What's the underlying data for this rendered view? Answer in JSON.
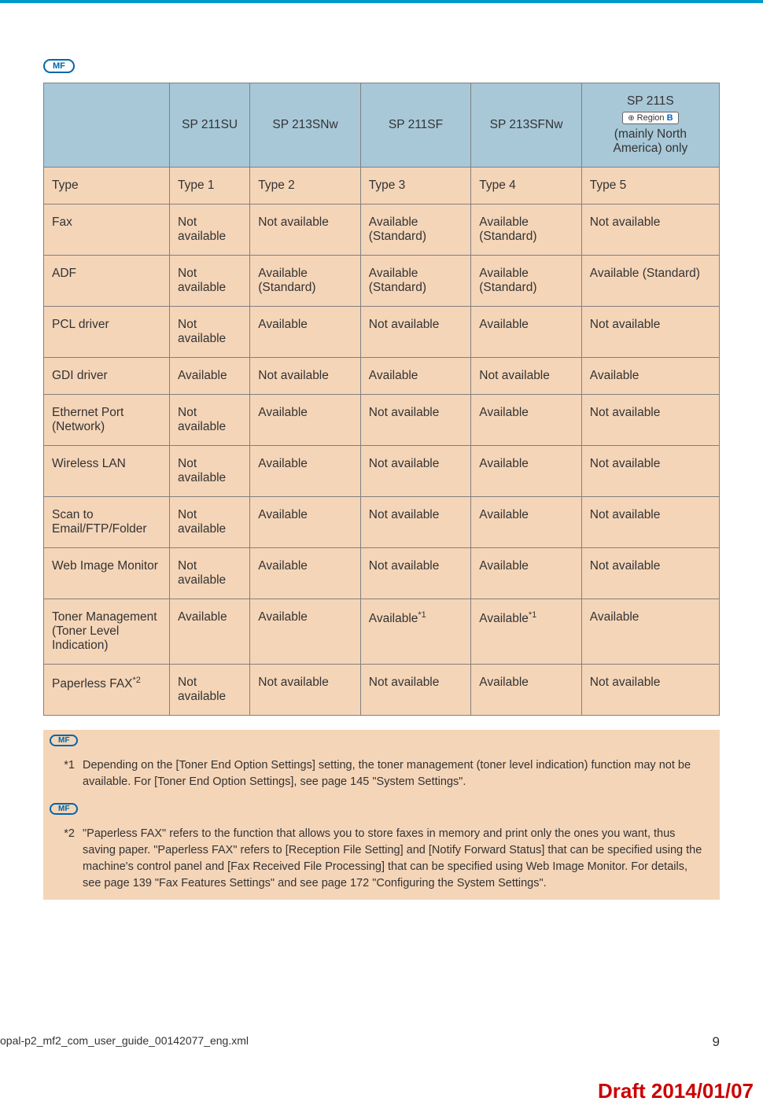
{
  "badges": {
    "mf": "MF"
  },
  "table": {
    "header_bg": "#a8c8d8",
    "body_bg": "#f5d5b8",
    "border_color": "#808080",
    "columns": [
      {
        "label": ""
      },
      {
        "label": "SP 211SU"
      },
      {
        "label": "SP 213SNw"
      },
      {
        "label": "SP 211SF"
      },
      {
        "label": "SP 213SFNw"
      },
      {
        "label": "SP 211S",
        "sub_region": "Region",
        "sub_region_letter": "B",
        "sub_text": "(mainly North America) only"
      }
    ],
    "rows": [
      {
        "feature": "Type",
        "cells": [
          "Type 1",
          "Type 2",
          "Type 3",
          "Type 4",
          "Type 5"
        ]
      },
      {
        "feature": "Fax",
        "cells": [
          "Not available",
          "Not available",
          "Available (Standard)",
          "Available (Standard)",
          "Not available"
        ]
      },
      {
        "feature": "ADF",
        "cells": [
          "Not available",
          "Available (Standard)",
          "Available (Standard)",
          "Available (Standard)",
          "Available (Standard)"
        ]
      },
      {
        "feature": "PCL driver",
        "cells": [
          "Not available",
          "Available",
          "Not available",
          "Available",
          "Not available"
        ]
      },
      {
        "feature": "GDI driver",
        "cells": [
          "Available",
          "Not available",
          "Available",
          "Not available",
          "Available"
        ]
      },
      {
        "feature": "Ethernet Port (Network)",
        "cells": [
          "Not available",
          "Available",
          "Not available",
          "Available",
          "Not available"
        ]
      },
      {
        "feature": "Wireless LAN",
        "cells": [
          "Not available",
          "Available",
          "Not available",
          "Available",
          "Not available"
        ]
      },
      {
        "feature": "Scan to Email/FTP/Folder",
        "cells": [
          "Not available",
          "Available",
          "Not available",
          "Available",
          "Not available"
        ]
      },
      {
        "feature": "Web Image Monitor",
        "cells": [
          "Not available",
          "Available",
          "Not available",
          "Available",
          "Not available"
        ]
      },
      {
        "feature": "Toner Management (Toner Level Indication)",
        "cells": [
          "Available",
          "Available",
          "Available",
          "Available",
          "Available"
        ],
        "sup": [
          "",
          "",
          "*1",
          "*1",
          ""
        ]
      },
      {
        "feature": "Paperless FAX",
        "feature_sup": "*2",
        "cells": [
          "Not available",
          "Not available",
          "Not available",
          "Available",
          "Not available"
        ]
      }
    ]
  },
  "footnotes": [
    {
      "marker": "*1",
      "text": "Depending on the [Toner End Option Settings] setting, the toner management (toner level indication) function may not be available. For [Toner End Option Settings], see page 145 \"System Settings\"."
    },
    {
      "marker": "*2",
      "text": "\"Paperless FAX\" refers to the function that allows you to store faxes in memory and print only the ones you want, thus saving paper. \"Paperless FAX\" refers to [Reception File Setting] and [Notify Forward Status] that can be specified using the machine's control panel and [Fax Received File Processing] that can be specified using Web Image Monitor. For details, see page 139 \"Fax Features Settings\" and see page 172 \"Configuring the System Settings\"."
    }
  ],
  "footer": {
    "file": "opal-p2_mf2_com_user_guide_00142077_eng.xml",
    "page": "9"
  },
  "draft": "Draft 2014/01/07"
}
